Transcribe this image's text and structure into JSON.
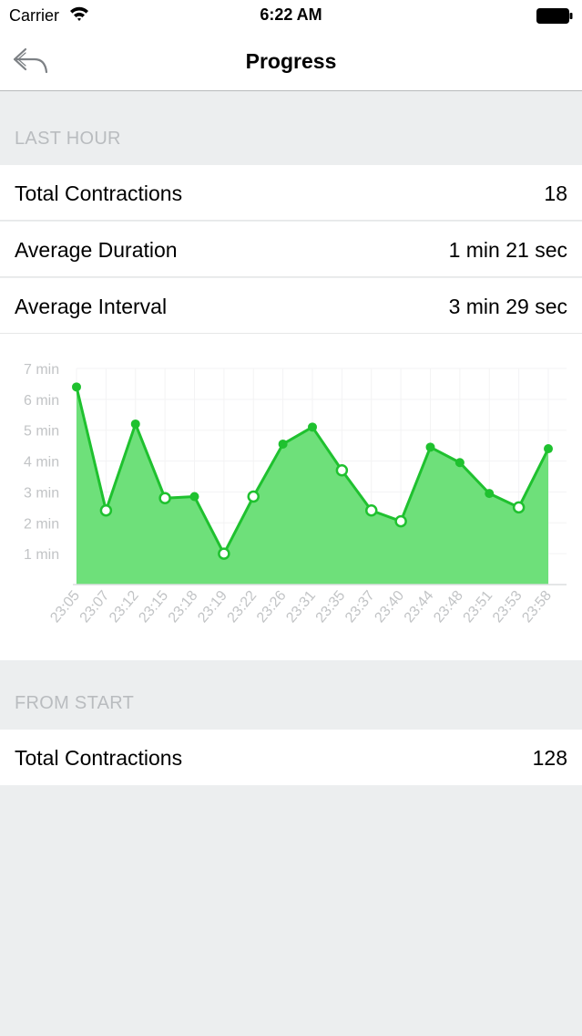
{
  "status_bar": {
    "carrier": "Carrier",
    "time": "6:22 AM"
  },
  "nav": {
    "title": "Progress",
    "back_icon": "back-arrow-icon"
  },
  "last_hour": {
    "header": "LAST HOUR",
    "rows": [
      {
        "label": "Total Contractions",
        "value": "18"
      },
      {
        "label": "Average Duration",
        "value": "1 min 21 sec"
      },
      {
        "label": "Average Interval",
        "value": "3 min 29 sec"
      }
    ]
  },
  "from_start": {
    "header": "FROM START",
    "rows": [
      {
        "label": "Total Contractions",
        "value": "128"
      }
    ]
  },
  "colors": {
    "line": "#1fc12f",
    "fill": "#6ee07a",
    "background": "#eceeef"
  },
  "chart_data": {
    "type": "area",
    "y_tick_labels": [
      "7 min",
      "6 min",
      "5 min",
      "4 min",
      "3 min",
      "2 min",
      "1 min"
    ],
    "ylim": [
      0,
      7
    ],
    "grid": true,
    "x": [
      "23:05",
      "23:07",
      "23:12",
      "23:15",
      "23:18",
      "23:19",
      "23:22",
      "23:26",
      "23:31",
      "23:35",
      "23:37",
      "23:40",
      "23:44",
      "23:48",
      "23:51",
      "23:53",
      "23:58"
    ],
    "values": [
      6.4,
      2.4,
      5.2,
      2.8,
      2.85,
      1.0,
      2.85,
      4.55,
      5.1,
      3.7,
      2.4,
      2.05,
      4.45,
      3.95,
      2.95,
      2.5,
      4.4
    ],
    "hollow_points": [
      1,
      3,
      5,
      6,
      9,
      10,
      11,
      15
    ]
  }
}
